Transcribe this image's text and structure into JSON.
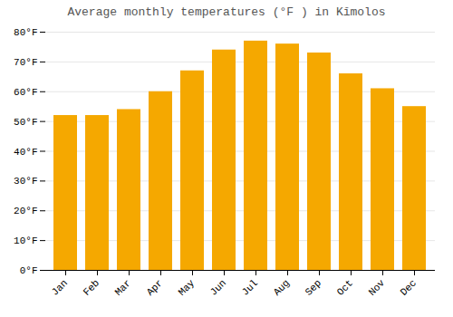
{
  "chart_data": {
    "type": "bar",
    "title": "Average monthly temperatures (°F ) in Kĭmolos",
    "categories": [
      "Jan",
      "Feb",
      "Mar",
      "Apr",
      "May",
      "Jun",
      "Jul",
      "Aug",
      "Sep",
      "Oct",
      "Nov",
      "Dec"
    ],
    "values": [
      52,
      52,
      54,
      60,
      67,
      74,
      77,
      76,
      73,
      66,
      61,
      55
    ],
    "color": "#F5A800",
    "ylim": [
      0,
      80
    ],
    "yticks": [
      {
        "value": 0,
        "label": "0°F"
      },
      {
        "value": 10,
        "label": "10°F"
      },
      {
        "value": 20,
        "label": "20°F"
      },
      {
        "value": 30,
        "label": "30°F"
      },
      {
        "value": 40,
        "label": "40°F"
      },
      {
        "value": 50,
        "label": "50°F"
      },
      {
        "value": 60,
        "label": "60°F"
      },
      {
        "value": 70,
        "label": "70°F"
      },
      {
        "value": 80,
        "label": "80°F"
      }
    ],
    "grid": true
  }
}
